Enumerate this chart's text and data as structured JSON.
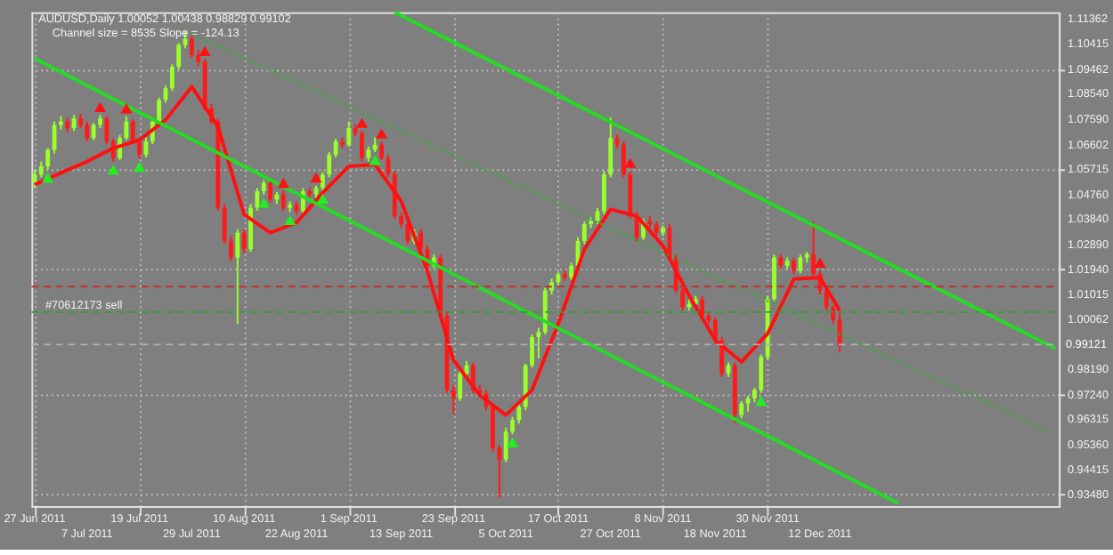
{
  "chart_data": {
    "type": "candlestick",
    "annotations": [
      "AUDUSD,Daily  1.00052 1.00438 0.98829 0.99102",
      "Channel size = 8535  Slope = -124.13"
    ],
    "categories": [
      "27 Jun 2011",
      null,
      null,
      null,
      null,
      null,
      null,
      null,
      "7 Jul 2011",
      null,
      null,
      null,
      null,
      null,
      null,
      null,
      "19 Jul 2011",
      null,
      null,
      null,
      null,
      null,
      null,
      null,
      "29 Jul 2011",
      null,
      null,
      null,
      null,
      null,
      null,
      null,
      "10 Aug 2011",
      null,
      null,
      null,
      null,
      null,
      null,
      null,
      "22 Aug 2011",
      null,
      null,
      null,
      null,
      null,
      null,
      null,
      "1 Sep 2011",
      null,
      null,
      null,
      null,
      null,
      null,
      null,
      "13 Sep 2011",
      null,
      null,
      null,
      null,
      null,
      null,
      null,
      "23 Sep 2011",
      null,
      null,
      null,
      null,
      null,
      null,
      null,
      "5 Oct 2011",
      null,
      null,
      null,
      null,
      null,
      null,
      null,
      "17 Oct 2011",
      null,
      null,
      null,
      null,
      null,
      null,
      null,
      "27 Oct 2011",
      null,
      null,
      null,
      null,
      null,
      null,
      null,
      "8 Nov 2011",
      null,
      null,
      null,
      null,
      null,
      null,
      null,
      "18 Nov 2011",
      null,
      null,
      null,
      null,
      null,
      null,
      null,
      "30 Nov 2011",
      null,
      null,
      null,
      null,
      null,
      null,
      null,
      "12 Dec 2011",
      null,
      null,
      null,
      null,
      null,
      null,
      null,
      null,
      null,
      null,
      null,
      null,
      null,
      null,
      null,
      null,
      null,
      null,
      null,
      null,
      null,
      null,
      null,
      null,
      null,
      null,
      null,
      null,
      null,
      null,
      null,
      null,
      null,
      null,
      null,
      null
    ],
    "ohlc": [
      [
        1.052,
        1.057,
        1.05,
        1.0551
      ],
      [
        1.0551,
        1.06,
        1.054,
        1.0582
      ],
      [
        1.0582,
        1.065,
        1.057,
        1.0644
      ],
      [
        1.0644,
        1.075,
        1.063,
        1.0737
      ],
      [
        1.0737,
        1.077,
        1.072,
        1.075
      ],
      [
        1.075,
        1.0765,
        1.071,
        1.0725
      ],
      [
        1.0725,
        1.0775,
        1.0715,
        1.0762
      ],
      [
        1.0762,
        1.078,
        1.0725,
        1.0737
      ],
      [
        1.0737,
        1.075,
        1.0675,
        1.0688
      ],
      [
        1.0688,
        1.0745,
        1.068,
        1.0737
      ],
      [
        1.0737,
        1.0775,
        1.0725,
        1.0762
      ],
      [
        1.0762,
        1.077,
        1.0665,
        1.0675
      ],
      [
        1.0675,
        1.0685,
        1.06,
        1.0613
      ],
      [
        1.0613,
        1.07,
        1.0605,
        1.0688
      ],
      [
        1.0688,
        1.077,
        1.068,
        1.075
      ],
      [
        1.075,
        1.076,
        1.0665,
        1.0675
      ],
      [
        1.0675,
        1.0685,
        1.061,
        1.0625
      ],
      [
        1.0625,
        1.069,
        1.0615,
        1.0675
      ],
      [
        1.0675,
        1.076,
        1.0665,
        1.075
      ],
      [
        1.075,
        1.084,
        1.074,
        1.0831
      ],
      [
        1.0831,
        1.0885,
        1.082,
        1.0875
      ],
      [
        1.0875,
        1.0965,
        1.0865,
        1.0956
      ],
      [
        1.0956,
        1.1045,
        1.0945,
        1.1037
      ],
      [
        1.1037,
        1.109,
        1.1025,
        1.1061
      ],
      [
        1.1061,
        1.1075,
        1.099,
        1.0999
      ],
      [
        1.0999,
        1.102,
        1.096,
        1.0974
      ],
      [
        1.0974,
        1.0985,
        1.079,
        1.08
      ],
      [
        1.08,
        1.0815,
        1.074,
        1.075
      ],
      [
        1.075,
        1.076,
        1.0415,
        1.0426
      ],
      [
        1.0426,
        1.044,
        1.029,
        1.0301
      ],
      [
        1.0301,
        1.032,
        1.0225,
        1.0239
      ],
      [
        1.0239,
        1.0345,
        0.999,
        1.0332
      ],
      [
        1.0332,
        1.0345,
        1.0255,
        1.027
      ],
      [
        1.027,
        1.044,
        1.026,
        1.0426
      ],
      [
        1.0426,
        1.05,
        1.0415,
        1.0488
      ],
      [
        1.0488,
        1.053,
        1.0475,
        1.0519
      ],
      [
        1.0519,
        1.053,
        1.0445,
        1.0457
      ],
      [
        1.0457,
        1.0485,
        1.044,
        1.0476
      ],
      [
        1.0476,
        1.049,
        1.0415,
        1.0426
      ],
      [
        1.0426,
        1.045,
        1.041,
        1.0438
      ],
      [
        1.0438,
        1.045,
        1.04,
        1.0413
      ],
      [
        1.0413,
        1.05,
        1.0405,
        1.0488
      ],
      [
        1.0488,
        1.05,
        1.0465,
        1.0476
      ],
      [
        1.0476,
        1.051,
        1.046,
        1.0501
      ],
      [
        1.0501,
        1.056,
        1.049,
        1.0551
      ],
      [
        1.0551,
        1.0635,
        1.054,
        1.0625
      ],
      [
        1.0625,
        1.0685,
        1.0615,
        1.0675
      ],
      [
        1.0675,
        1.069,
        1.065,
        1.0663
      ],
      [
        1.0663,
        1.075,
        1.0655,
        1.0725
      ],
      [
        1.0725,
        1.074,
        1.0695,
        1.0706
      ],
      [
        1.0706,
        1.0715,
        1.06,
        1.0613
      ],
      [
        1.0613,
        1.0655,
        1.06,
        1.0644
      ],
      [
        1.0644,
        1.069,
        1.0635,
        1.0663
      ],
      [
        1.0663,
        1.0675,
        1.0605,
        1.0613
      ],
      [
        1.0613,
        1.0625,
        1.054,
        1.0551
      ],
      [
        1.0551,
        1.0565,
        1.0385,
        1.0395
      ],
      [
        1.0395,
        1.041,
        1.035,
        1.0364
      ],
      [
        1.0364,
        1.0375,
        1.029,
        1.0301
      ],
      [
        1.0301,
        1.0345,
        1.029,
        1.0332
      ],
      [
        1.0332,
        1.0345,
        1.026,
        1.027
      ],
      [
        1.027,
        1.0285,
        1.0195,
        1.0208
      ],
      [
        1.0208,
        1.025,
        1.02,
        1.0239
      ],
      [
        1.0239,
        1.025,
        1.001,
        1.0021
      ],
      [
        1.0021,
        1.0035,
        0.973,
        0.9741
      ],
      [
        0.9741,
        0.976,
        0.965,
        0.971
      ],
      [
        0.971,
        0.9815,
        0.97,
        0.9803
      ],
      [
        0.9803,
        0.985,
        0.979,
        0.9834
      ],
      [
        0.9834,
        0.9845,
        0.973,
        0.9741
      ],
      [
        0.9741,
        0.976,
        0.9715,
        0.9728
      ],
      [
        0.9728,
        0.974,
        0.9665,
        0.9678
      ],
      [
        0.9678,
        0.969,
        0.951,
        0.9523
      ],
      [
        0.9523,
        0.9535,
        0.9336,
        0.948
      ],
      [
        0.948,
        0.96,
        0.947,
        0.9585
      ],
      [
        0.9585,
        0.964,
        0.9575,
        0.9628
      ],
      [
        0.9628,
        0.969,
        0.9615,
        0.9678
      ],
      [
        0.9678,
        0.984,
        0.9665,
        0.9834
      ],
      [
        0.9834,
        0.995,
        0.9825,
        0.994
      ],
      [
        0.994,
        0.9975,
        0.986,
        0.9959
      ],
      [
        0.9959,
        1.0125,
        0.995,
        1.0115
      ],
      [
        1.0115,
        1.016,
        1.01,
        1.0146
      ],
      [
        1.0146,
        1.0185,
        1.0135,
        1.0177
      ],
      [
        1.0177,
        1.019,
        1.015,
        1.0164
      ],
      [
        1.0164,
        1.022,
        1.0155,
        1.0208
      ],
      [
        1.0208,
        1.0315,
        1.0195,
        1.0301
      ],
      [
        1.0301,
        1.0375,
        1.029,
        1.0364
      ],
      [
        1.0364,
        1.039,
        1.035,
        1.0376
      ],
      [
        1.0376,
        1.0425,
        1.0365,
        1.0413
      ],
      [
        1.0413,
        1.0565,
        1.04,
        1.0551
      ],
      [
        1.0551,
        1.0765,
        1.054,
        1.0688
      ],
      [
        1.0688,
        1.07,
        1.065,
        1.0663
      ],
      [
        1.0663,
        1.0675,
        1.054,
        1.0551
      ],
      [
        1.0551,
        1.0565,
        1.0385,
        1.0395
      ],
      [
        1.0395,
        1.041,
        1.03,
        1.0314
      ],
      [
        1.0314,
        1.0385,
        1.0305,
        1.0376
      ],
      [
        1.0376,
        1.0395,
        1.035,
        1.0364
      ],
      [
        1.0364,
        1.0375,
        1.032,
        1.0332
      ],
      [
        1.0332,
        1.036,
        1.032,
        1.0351
      ],
      [
        1.0351,
        1.0365,
        1.0225,
        1.0239
      ],
      [
        1.0239,
        1.025,
        1.0105,
        1.0115
      ],
      [
        1.0115,
        1.0125,
        1.004,
        1.0052
      ],
      [
        1.0052,
        1.008,
        1.004,
        1.0065
      ],
      [
        1.0065,
        1.0095,
        1.005,
        1.0083
      ],
      [
        1.0083,
        1.0095,
        1.001,
        1.0021
      ],
      [
        1.0021,
        1.0035,
        0.999,
        1.0003
      ],
      [
        1.0003,
        1.0015,
        0.9915,
        0.9928
      ],
      [
        0.9928,
        0.994,
        0.979,
        0.9803
      ],
      [
        0.9803,
        0.9845,
        0.979,
        0.9834
      ],
      [
        0.9834,
        0.9845,
        0.9616,
        0.9647
      ],
      [
        0.9647,
        0.97,
        0.9635,
        0.9691
      ],
      [
        0.9691,
        0.972,
        0.966,
        0.971
      ],
      [
        0.971,
        0.975,
        0.9695,
        0.9741
      ],
      [
        0.9741,
        0.9875,
        0.973,
        0.9865
      ],
      [
        0.9865,
        1.0095,
        0.9855,
        1.0083
      ],
      [
        1.0083,
        1.025,
        1.0075,
        1.0239
      ],
      [
        1.0239,
        1.025,
        1.0195,
        1.0208
      ],
      [
        1.0208,
        1.024,
        1.0195,
        1.0227
      ],
      [
        1.0227,
        1.024,
        1.0175,
        1.0189
      ],
      [
        1.0189,
        1.025,
        1.018,
        1.0239
      ],
      [
        1.0239,
        1.026,
        1.022,
        1.0252
      ],
      [
        1.0252,
        1.0375,
        1.0165,
        1.0177
      ],
      [
        1.0177,
        1.019,
        1.01,
        1.0115
      ],
      [
        1.0115,
        1.0125,
        1.004,
        1.0052
      ],
      [
        1.0052,
        1.006,
        0.999,
        1.0005
      ],
      [
        1.00052,
        1.00438,
        0.98829,
        0.99102
      ],
      null,
      null,
      null,
      null,
      null,
      null,
      null,
      null,
      null,
      null,
      null,
      null,
      null,
      null,
      null,
      null,
      null,
      null,
      null,
      null,
      null,
      null,
      null,
      null,
      null,
      null,
      null,
      null,
      null,
      null,
      null,
      null,
      null
    ],
    "series": [
      {
        "type": "line",
        "color": "#ff1010",
        "values": [
          1.0513,
          null,
          null,
          null,
          1.0557,
          null,
          null,
          null,
          1.06,
          null,
          null,
          null,
          1.065,
          null,
          null,
          null,
          1.0681,
          null,
          null,
          null,
          1.0756,
          null,
          null,
          null,
          1.0881,
          null,
          null,
          null,
          1.0731,
          null,
          null,
          null,
          1.0401,
          null,
          null,
          null,
          1.0332,
          null,
          null,
          null,
          1.037,
          null,
          null,
          null,
          1.0482,
          null,
          null,
          null,
          1.0582,
          null,
          null,
          null,
          1.0588,
          null,
          null,
          null,
          1.0451,
          null,
          null,
          null,
          1.0189,
          null,
          null,
          null,
          0.9853,
          null,
          null,
          null,
          0.9722,
          null,
          null,
          null,
          0.9647,
          null,
          null,
          null,
          0.9741,
          null,
          null,
          null,
          0.999,
          null,
          null,
          null,
          1.027,
          null,
          null,
          null,
          1.042,
          null,
          null,
          null,
          1.0395,
          null,
          null,
          null,
          1.0283,
          null,
          null,
          null,
          1.0096,
          null,
          null,
          null,
          0.9928,
          null,
          null,
          null,
          0.9847,
          null,
          null,
          null,
          0.9953,
          null,
          null,
          null,
          1.0158,
          null,
          null,
          null,
          1.0164,
          null,
          null,
          1.004,
          null,
          null,
          null,
          null,
          null,
          null,
          null,
          null,
          null,
          null,
          null,
          null,
          null,
          null,
          null,
          null,
          null,
          null,
          null,
          null,
          null,
          null,
          null,
          null,
          null,
          null,
          null,
          null,
          null,
          null,
          null,
          null,
          null
        ]
      },
      {
        "type": "line",
        "color": "#22dd22",
        "values": [
          null,
          null,
          null,
          null,
          null,
          null,
          null,
          null,
          null,
          null,
          null,
          null,
          null,
          null,
          null,
          null,
          null,
          null,
          null,
          null,
          null,
          null,
          null,
          null,
          null,
          null,
          null,
          null,
          null,
          null,
          null,
          null,
          null,
          null,
          null,
          null,
          null,
          null,
          null,
          null,
          null,
          null,
          null,
          null,
          null,
          null,
          null,
          null,
          null,
          null,
          null,
          null,
          null,
          null,
          null,
          1.1161,
          null,
          null,
          null,
          null,
          null,
          null,
          null,
          null,
          null,
          null,
          null,
          null,
          null,
          null,
          null,
          null,
          null,
          null,
          null,
          null,
          null,
          null,
          null,
          null,
          null,
          null,
          null,
          null,
          null,
          null,
          null,
          null,
          null,
          null,
          null,
          null,
          null,
          null,
          null,
          null,
          null,
          null,
          null,
          null,
          null,
          null,
          null,
          null,
          null,
          null,
          null,
          null,
          null,
          null,
          null,
          null,
          null,
          null,
          null,
          null,
          null,
          null,
          null,
          null,
          null,
          null,
          null,
          null,
          null,
          null,
          null,
          null,
          null,
          null,
          null,
          null,
          null,
          null,
          null,
          null,
          null,
          null,
          null,
          null,
          null,
          null,
          null,
          null,
          null,
          null,
          null,
          null,
          null,
          null,
          null,
          null,
          null,
          null,
          null,
          null,
          0.9897
        ]
      },
      {
        "type": "line",
        "color": "#22dd22",
        "values": [
          1.0987,
          null,
          null,
          null,
          null,
          null,
          null,
          null,
          null,
          null,
          null,
          null,
          null,
          null,
          null,
          null,
          null,
          null,
          null,
          null,
          null,
          null,
          null,
          null,
          null,
          null,
          null,
          null,
          null,
          null,
          null,
          null,
          null,
          null,
          null,
          null,
          null,
          null,
          null,
          null,
          null,
          null,
          null,
          null,
          null,
          null,
          null,
          null,
          null,
          null,
          null,
          null,
          null,
          null,
          null,
          null,
          null,
          null,
          null,
          null,
          null,
          null,
          null,
          null,
          null,
          null,
          null,
          null,
          null,
          null,
          null,
          null,
          null,
          null,
          null,
          null,
          null,
          null,
          null,
          null,
          null,
          null,
          null,
          null,
          null,
          null,
          null,
          null,
          null,
          null,
          null,
          null,
          null,
          null,
          null,
          null,
          null,
          null,
          null,
          null,
          null,
          null,
          null,
          null,
          null,
          null,
          null,
          null,
          null,
          null,
          null,
          null,
          null,
          null,
          null,
          null,
          null,
          null,
          null,
          null,
          null,
          null,
          null,
          null,
          null,
          null,
          null,
          null,
          null,
          null,
          null,
          null,
          0.9315,
          null,
          null,
          null,
          null,
          null,
          null,
          null,
          null,
          null,
          null,
          null,
          null,
          null,
          null,
          null,
          null,
          null,
          null,
          null,
          null,
          null,
          null,
          null,
          null
        ]
      },
      {
        "type": "line",
        "color": "#22bb22",
        "line_style": "dotted",
        "values": [
          null,
          null,
          null,
          null,
          null,
          null,
          null,
          null,
          null,
          null,
          null,
          null,
          null,
          null,
          null,
          null,
          null,
          null,
          null,
          null,
          null,
          null,
          null,
          null,
          1.108,
          null,
          null,
          null,
          null,
          null,
          null,
          null,
          null,
          null,
          null,
          null,
          null,
          null,
          null,
          null,
          null,
          null,
          null,
          null,
          null,
          null,
          null,
          null,
          null,
          null,
          null,
          null,
          null,
          null,
          null,
          null,
          null,
          null,
          null,
          null,
          null,
          null,
          null,
          null,
          null,
          null,
          null,
          null,
          null,
          null,
          null,
          null,
          null,
          null,
          null,
          null,
          null,
          null,
          null,
          null,
          null,
          null,
          null,
          null,
          null,
          null,
          null,
          null,
          null,
          null,
          null,
          null,
          null,
          null,
          null,
          null,
          null,
          null,
          null,
          null,
          null,
          null,
          null,
          null,
          null,
          null,
          null,
          null,
          null,
          null,
          null,
          null,
          null,
          null,
          null,
          null,
          null,
          null,
          null,
          null,
          null,
          null,
          null,
          null,
          null,
          null,
          null,
          null,
          null,
          null,
          null,
          null,
          null,
          null,
          null,
          null,
          null,
          null,
          null,
          null,
          null,
          null,
          null,
          null,
          null,
          null,
          null,
          null,
          null,
          null,
          null,
          null,
          null,
          null,
          null,
          0.9585,
          null
        ]
      },
      {
        "type": "scatter",
        "color": "#22ee22",
        "marker": "triangle",
        "values": [
          null,
          null,
          1.054,
          null,
          null,
          null,
          null,
          null,
          null,
          null,
          null,
          null,
          1.057,
          null,
          null,
          null,
          1.058,
          null,
          null,
          null,
          null,
          null,
          null,
          null,
          null,
          null,
          null,
          null,
          null,
          null,
          null,
          null,
          null,
          null,
          null,
          1.0445,
          null,
          null,
          null,
          1.038,
          null,
          null,
          null,
          null,
          1.046,
          null,
          null,
          null,
          null,
          null,
          null,
          null,
          1.0605,
          null,
          null,
          null,
          null,
          null,
          null,
          null,
          null,
          null,
          null,
          null,
          null,
          null,
          null,
          null,
          null,
          null,
          null,
          null,
          null,
          0.9545,
          null,
          null,
          null,
          null,
          null,
          null,
          null,
          null,
          null,
          null,
          null,
          null,
          null,
          null,
          null,
          null,
          null,
          null,
          null,
          null,
          null,
          null,
          null,
          null,
          null,
          null,
          null,
          null,
          null,
          null,
          null,
          null,
          null,
          null,
          null,
          null,
          null,
          0.97,
          null,
          null,
          null,
          null,
          null,
          null,
          null,
          null,
          null,
          null,
          null,
          null,
          null,
          null,
          null,
          null,
          null,
          null,
          null,
          null,
          null,
          null,
          null,
          null,
          null,
          null,
          null,
          null,
          null,
          null,
          null,
          null,
          null,
          null,
          null,
          null,
          null,
          null,
          null,
          null,
          null,
          null,
          null,
          null,
          null
        ]
      },
      {
        "type": "scatter",
        "color": "#ff1010",
        "marker": "triangle",
        "values": [
          null,
          null,
          null,
          null,
          null,
          null,
          null,
          null,
          null,
          null,
          1.0805,
          null,
          null,
          null,
          1.08,
          null,
          null,
          null,
          null,
          null,
          null,
          null,
          null,
          null,
          null,
          null,
          1.1015,
          null,
          null,
          null,
          null,
          null,
          null,
          null,
          null,
          null,
          null,
          null,
          1.052,
          null,
          null,
          null,
          null,
          1.054,
          null,
          null,
          null,
          null,
          null,
          null,
          1.0745,
          null,
          null,
          1.0705,
          null,
          null,
          null,
          null,
          null,
          null,
          null,
          null,
          null,
          null,
          null,
          null,
          null,
          null,
          null,
          null,
          null,
          null,
          null,
          null,
          null,
          null,
          null,
          null,
          null,
          null,
          null,
          null,
          null,
          null,
          null,
          null,
          null,
          null,
          null,
          null,
          null,
          1.0595,
          null,
          null,
          null,
          null,
          null,
          null,
          null,
          null,
          null,
          null,
          null,
          null,
          null,
          null,
          null,
          null,
          null,
          null,
          null,
          null,
          null,
          null,
          null,
          null,
          null,
          null,
          null,
          null,
          1.022,
          null,
          null,
          null,
          null,
          null,
          null,
          null,
          null,
          null,
          null,
          null,
          null,
          null,
          null,
          null,
          null,
          null,
          null,
          null,
          null,
          null,
          null,
          null,
          null,
          null,
          null,
          null,
          null,
          null,
          null,
          null,
          null,
          null,
          null,
          null,
          null
        ]
      }
    ],
    "ref_lines": [
      {
        "axis": "y",
        "value": 1.013,
        "color": "#c03030",
        "line_style": "dashed"
      },
      {
        "axis": "y",
        "value": 1.0034,
        "color": "#30a030",
        "line_style": "dashed",
        "label": "#70612173 sell"
      },
      {
        "axis": "y",
        "value": 0.99121,
        "color": "#b0b0b0",
        "line_style": "dashed",
        "label": "0.99121"
      }
    ],
    "ylim": [
      0.9305,
      1.1161
    ],
    "yticks": [
      1.11362,
      1.10415,
      1.09462,
      {
        "value": 1.0854,
        "label": "1.08540"
      },
      {
        "value": 1.0759,
        "label": "1.07590"
      },
      1.06602,
      1.05715,
      {
        "value": 1.0476,
        "label": "1.04760"
      },
      {
        "value": 1.0384,
        "label": "1.03840"
      },
      {
        "value": 1.0289,
        "label": "1.02890"
      },
      {
        "value": 1.0194,
        "label": "1.01940"
      },
      1.01015,
      1.00062,
      {
        "value": 0.9819,
        "label": "0.98190"
      },
      {
        "value": 0.9724,
        "label": "0.97240"
      },
      0.96315,
      {
        "value": 0.9536,
        "label": "0.95360"
      },
      0.94415,
      {
        "value": 0.9348,
        "label": "0.93480"
      }
    ],
    "grid": true,
    "legend": false
  }
}
